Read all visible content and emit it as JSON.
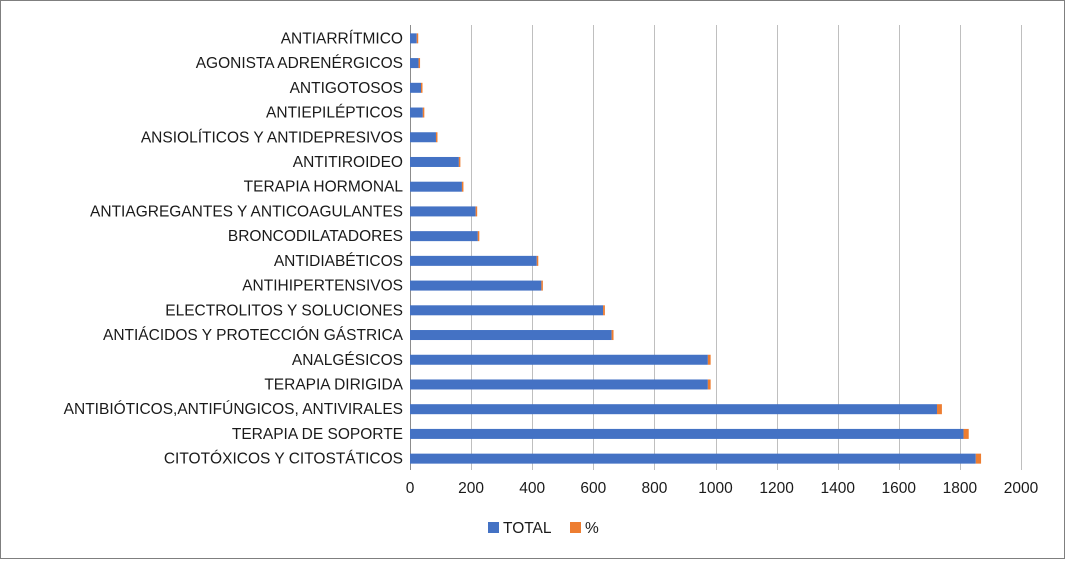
{
  "chart_data": {
    "type": "bar",
    "orientation": "horizontal",
    "title": "",
    "xlabel": "",
    "ylabel": "",
    "categories": [
      "ANTIARRÍTMICO",
      "AGONISTA ADRENÉRGICOS",
      "ANTIGOTOSOS",
      "ANTIEPILÉPTICOS",
      "ANSIOLÍTICOS Y ANTIDEPRESIVOS",
      "ANTITIROIDEO",
      "TERAPIA HORMONAL",
      "ANTIAGREGANTES Y ANTICOAGULANTES",
      "BRONCODILATADORES",
      "ANTIDIABÉTICOS",
      "ANTIHIPERTENSIVOS",
      "ELECTROLITOS Y SOLUCIONES",
      "ANTIÁCIDOS Y PROTECCIÓN GÁSTRICA",
      "ANALGÉSICOS",
      "TERAPIA DIRIGIDA",
      "ANTIBIÓTICOS,ANTIFÚNGICOS, ANTIVIRALES",
      "TERAPIA DE SOPORTE",
      "CITOTÓXICOS Y CITOSTÁTICOS"
    ],
    "series": [
      {
        "name": "TOTAL",
        "color": "#4472C4",
        "values": [
          22,
          28,
          36,
          42,
          85,
          160,
          170,
          215,
          222,
          415,
          430,
          632,
          660,
          975,
          975,
          1725,
          1812,
          1852
        ]
      },
      {
        "name": "%",
        "color": "#ED7D31",
        "values": [
          0.2,
          0.3,
          0.4,
          0.4,
          0.8,
          1.5,
          1.6,
          2.0,
          2.1,
          3.9,
          4.0,
          5.9,
          6.2,
          9.1,
          9.1,
          16.1,
          16.9,
          17.3
        ]
      }
    ],
    "xlim": [
      0,
      2000
    ],
    "xticks": [
      0,
      200,
      400,
      600,
      800,
      1000,
      1200,
      1400,
      1600,
      1800,
      2000
    ],
    "grid": "vertical",
    "legend": [
      "TOTAL",
      "%"
    ],
    "legend_position": "bottom"
  }
}
